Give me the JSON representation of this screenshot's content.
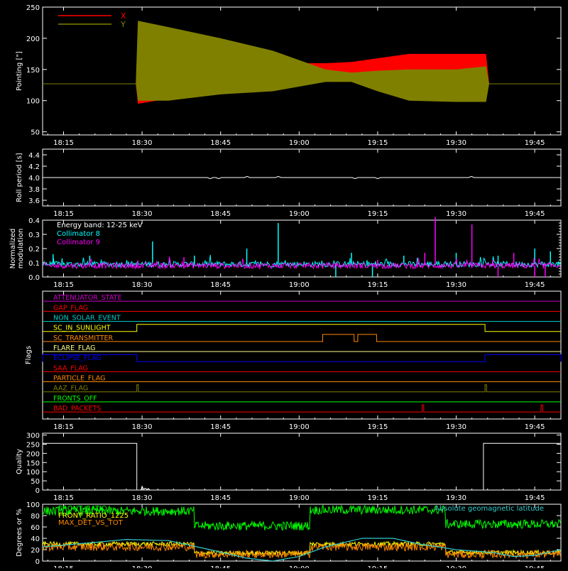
{
  "x_ticks": [
    "18:15",
    "18:30",
    "18:45",
    "19:00",
    "19:15",
    "19:30",
    "19:45"
  ],
  "x_tick_values_min": [
    0,
    15,
    30,
    45,
    60,
    75,
    90
  ],
  "time_range_min": [
    -4,
    95
  ],
  "chart_data": [
    {
      "type": "area",
      "ylabel": "Pointing [\"]",
      "ylim": [
        45,
        250
      ],
      "yticks": [
        50,
        100,
        150,
        200,
        250
      ],
      "legend_placement": "top-left",
      "series": [
        {
          "name": "X",
          "color": "#ff0000",
          "x": [
            -4,
            13.8,
            14.2,
            20,
            30,
            40,
            50,
            55,
            60,
            66,
            75,
            80.7,
            81.3,
            95
          ],
          "low": [
            127,
            127,
            95,
            103,
            110,
            120,
            135,
            140,
            145,
            145,
            140,
            140,
            127,
            127
          ],
          "high": [
            127,
            127,
            210,
            188,
            172,
            160,
            160,
            162,
            168,
            175,
            175,
            175,
            127,
            127
          ]
        },
        {
          "name": "Y",
          "color": "#808000",
          "x": [
            -4,
            13.8,
            14.2,
            20,
            30,
            40,
            50,
            55,
            60,
            66,
            75,
            80.7,
            81.3,
            95
          ],
          "low": [
            127,
            127,
            100,
            100,
            110,
            115,
            130,
            130,
            115,
            100,
            98,
            98,
            127,
            127
          ],
          "high": [
            127,
            127,
            228,
            218,
            200,
            180,
            150,
            145,
            148,
            150,
            150,
            155,
            127,
            127
          ]
        }
      ]
    },
    {
      "type": "line",
      "ylabel": "Roll period [s]",
      "ylim": [
        3.5,
        4.5
      ],
      "yticks": [
        3.6,
        3.8,
        4.0,
        4.2,
        4.4
      ],
      "series": [
        {
          "name": "",
          "color": "#ffffff",
          "value": 4.0
        }
      ]
    },
    {
      "type": "line",
      "ylabel_lines": [
        "Normalized",
        "modulation"
      ],
      "ylim": [
        0.0,
        0.4
      ],
      "yticks": [
        0.0,
        0.1,
        0.2,
        0.3,
        0.4
      ],
      "legend_title": "Energy band: 12-25 keV",
      "series": [
        {
          "name": "Collimator 8",
          "color": "#00ffff",
          "baseline": 0.09,
          "spikes": [
            [
              -2,
              0.16
            ],
            [
              5,
              0.15
            ],
            [
              17,
              0.25
            ],
            [
              25,
              0.15
            ],
            [
              35,
              0.2
            ],
            [
              41,
              0.38
            ],
            [
              55,
              0.17
            ],
            [
              65,
              0.15
            ],
            [
              75,
              0.17
            ],
            [
              83,
              0.15
            ],
            [
              90,
              0.2
            ],
            [
              93,
              0.18
            ]
          ],
          "dips": [
            [
              52,
              0.0
            ],
            [
              59,
              0.0
            ]
          ]
        },
        {
          "name": "Collimator 9",
          "color": "#ff00ff",
          "baseline": 0.08,
          "spikes": [
            [
              23,
              0.14
            ],
            [
              60,
              0.12
            ],
            [
              69,
              0.17
            ],
            [
              71,
              0.42
            ],
            [
              78,
              0.37
            ],
            [
              82,
              0.12
            ],
            [
              86,
              0.17
            ]
          ],
          "dips": [
            [
              83,
              0.0
            ],
            [
              90,
              0.0
            ],
            [
              92,
              0.0
            ]
          ]
        }
      ]
    },
    {
      "type": "line",
      "ylabel": "Flags",
      "ylim": [
        0,
        12.7
      ],
      "series": [
        {
          "name": "ATTENUATOR_STATE",
          "color": "#cc00cc",
          "level": 11,
          "steps": []
        },
        {
          "name": "GAP_FLAG",
          "color": "#ff0000",
          "level": 10,
          "steps": []
        },
        {
          "name": "NON_SOLAR_EVENT",
          "color": "#00c8c8",
          "level": 9,
          "steps": []
        },
        {
          "name": "SC_IN_SUNLIGHT",
          "color": "#ffff00",
          "level": 8,
          "steps": [
            [
              14,
              80.5,
              0.7
            ]
          ]
        },
        {
          "name": "SC_TRANSMITTER",
          "color": "#ff8800",
          "level": 7,
          "steps": [
            [
              49.5,
              55.5,
              0.7
            ],
            [
              56.2,
              59.8,
              0.7
            ]
          ]
        },
        {
          "name": "FLARE_FLAG",
          "color": "#ffff88",
          "level": 6,
          "steps": []
        },
        {
          "name": "ECLIPSE_FLAG",
          "color": "#0000ff",
          "level": 5,
          "steps": [
            [
              -4,
              14,
              0.7
            ],
            [
              80.5,
              95,
              0.7
            ]
          ]
        },
        {
          "name": "SAA_FLAG",
          "color": "#ff0000",
          "level": 4,
          "steps": []
        },
        {
          "name": "PARTICLE_FLAG",
          "color": "#ff8800",
          "level": 3,
          "steps": []
        },
        {
          "name": "AAZ_FLAG",
          "color": "#808000",
          "level": 2,
          "steps": [
            [
              14,
              14.3,
              0.7
            ],
            [
              80.5,
              80.8,
              0.7
            ]
          ]
        },
        {
          "name": "FRONTS_OFF",
          "color": "#00ff00",
          "level": 1,
          "steps": []
        },
        {
          "name": "BAD_PACKETS",
          "color": "#ff0000",
          "level": 0,
          "steps": [
            [
              68.5,
              68.8,
              0.7
            ],
            [
              91.2,
              91.5,
              0.7
            ]
          ]
        }
      ]
    },
    {
      "type": "line",
      "ylabel": "Quality",
      "ylim": [
        0,
        310
      ],
      "yticks": [
        0,
        50,
        100,
        150,
        200,
        250,
        300
      ],
      "series": [
        {
          "name": "",
          "color": "#ffffff",
          "x": [
            -4,
            14,
            14,
            14.8,
            15,
            15.3,
            15.6,
            16,
            16.2,
            16.5,
            80.2,
            80.2,
            95
          ],
          "y": [
            255,
            255,
            0,
            0,
            20,
            3,
            10,
            2,
            8,
            0,
            0,
            255,
            255
          ]
        }
      ]
    },
    {
      "type": "line",
      "ylabel": "Degrees or %",
      "ylim": [
        0,
        100
      ],
      "yticks": [
        0,
        20,
        40,
        60,
        80,
        100
      ],
      "series": [
        {
          "name": "FRONT_RATIO",
          "color": "#00ff00",
          "segments": [
            [
              -4,
              25,
              88
            ],
            [
              25,
              47,
              62
            ],
            [
              47,
              73,
              90
            ],
            [
              73,
              95,
              65
            ]
          ]
        },
        {
          "name": "FRONT_RATIO_1225",
          "color": "#ffff00",
          "segments": [
            [
              -4,
              25,
              30
            ],
            [
              25,
              47,
              14
            ],
            [
              47,
              73,
              30
            ],
            [
              73,
              95,
              15
            ]
          ]
        },
        {
          "name": "MAX_DET_VS_TOT",
          "color": "#ff8800",
          "segments": [
            [
              -4,
              25,
              25
            ],
            [
              25,
              47,
              12
            ],
            [
              47,
              73,
              25
            ],
            [
              73,
              95,
              12
            ]
          ]
        },
        {
          "name": "Absolute geomagnetic latitude",
          "color": "#33cccc",
          "x": [
            -4,
            5,
            12,
            20,
            28,
            35,
            40,
            45,
            50,
            57,
            63,
            68,
            75,
            82,
            86,
            90,
            95
          ],
          "y": [
            25,
            32,
            38,
            36,
            20,
            5,
            0,
            8,
            25,
            40,
            40,
            30,
            20,
            15,
            8,
            10,
            20
          ]
        }
      ]
    }
  ]
}
